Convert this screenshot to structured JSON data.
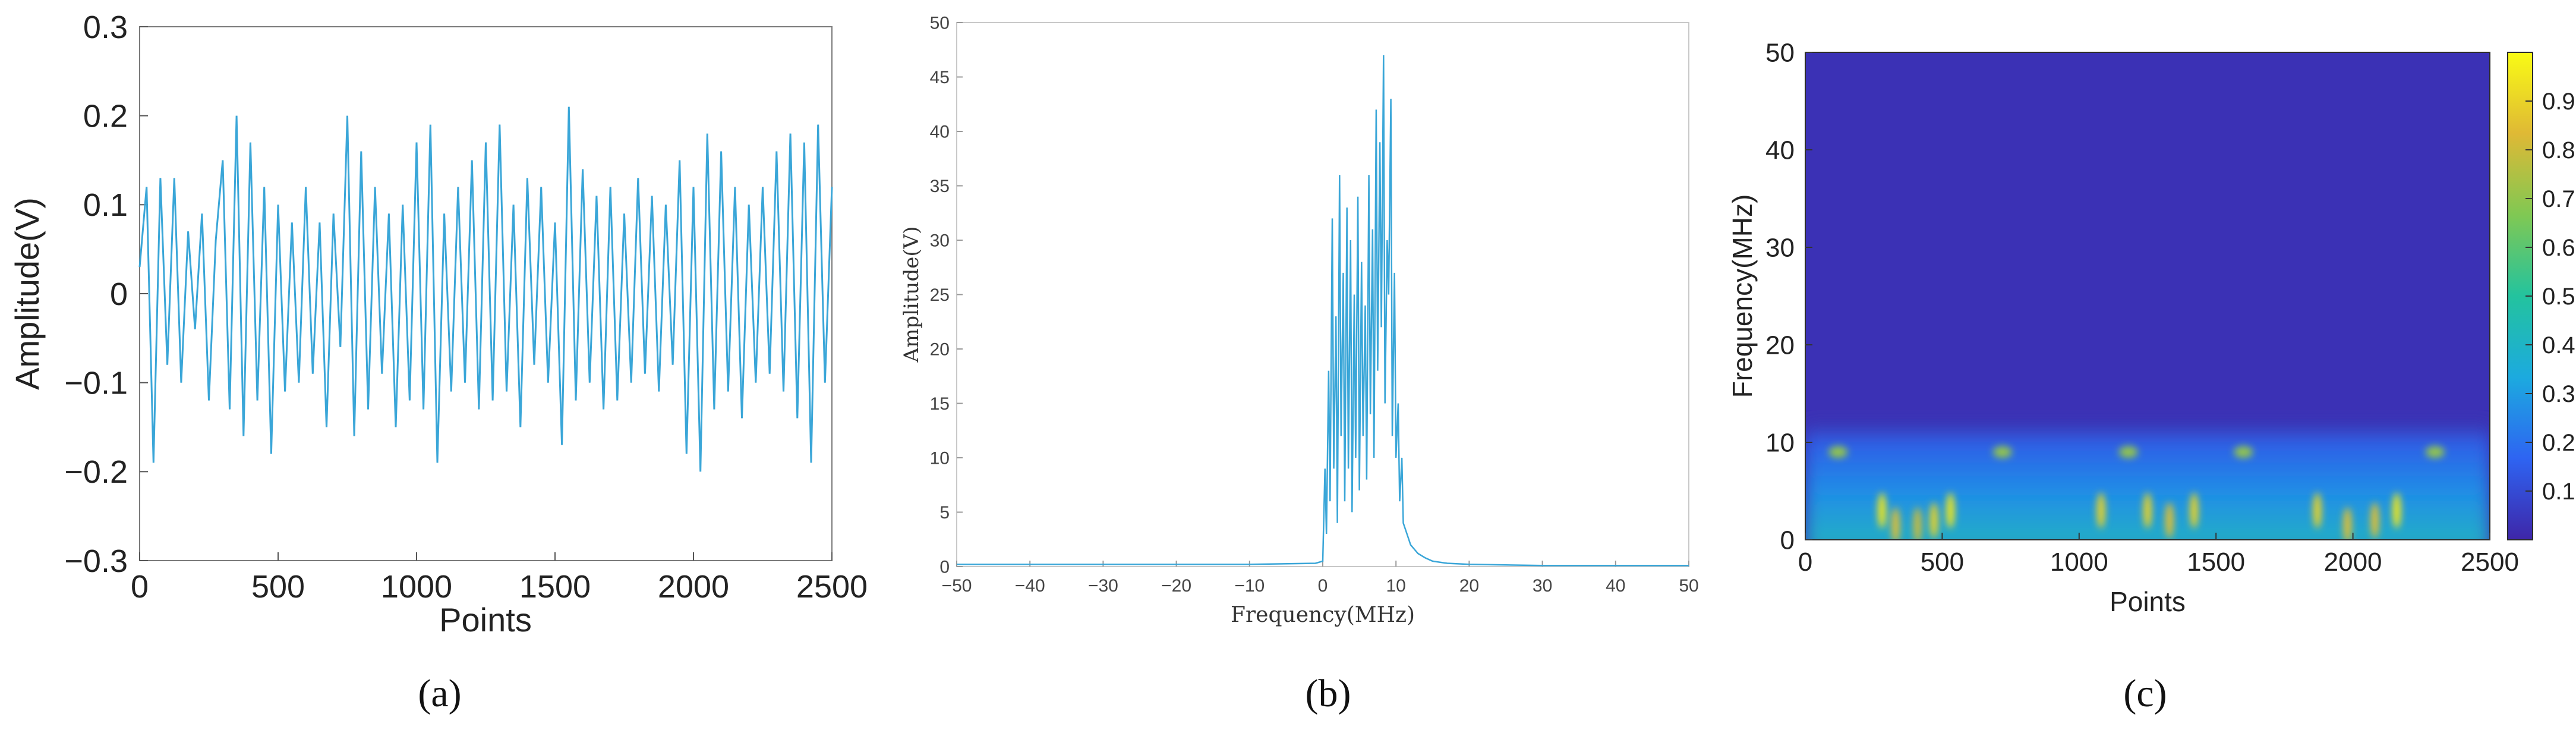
{
  "chart_data": [
    {
      "type": "line",
      "panel_label": "(a)",
      "xlabel": "Points",
      "ylabel": "Amplitude(V)",
      "xlim": [
        0,
        2500
      ],
      "ylim": [
        -0.3,
        0.3
      ],
      "xticks": [
        0,
        500,
        1000,
        1500,
        2000,
        2500
      ],
      "xtick_labels": [
        "0",
        "500",
        "1000",
        "1500",
        "2000",
        "2500"
      ],
      "yticks": [
        -0.3,
        -0.2,
        -0.1,
        0,
        0.1,
        0.2,
        0.3
      ],
      "ytick_labels": [
        "−0.3",
        "−0.2",
        "−0.1",
        "0",
        "0.1",
        "0.2",
        "0.3"
      ],
      "grid": false,
      "color": "#3aa6d8",
      "series": [
        {
          "x": [
            0,
            25,
            50,
            75,
            100,
            125,
            150,
            175,
            200,
            225,
            250,
            275,
            300,
            325,
            350,
            375,
            400,
            425,
            450,
            475,
            500,
            525,
            550,
            575,
            600,
            625,
            650,
            675,
            700,
            725,
            750,
            775,
            800,
            825,
            850,
            875,
            900,
            925,
            950,
            975,
            1000,
            1025,
            1050,
            1075,
            1100,
            1125,
            1150,
            1175,
            1200,
            1225,
            1250,
            1275,
            1300,
            1325,
            1350,
            1375,
            1400,
            1425,
            1450,
            1475,
            1500,
            1525,
            1550,
            1575,
            1600,
            1625,
            1650,
            1675,
            1700,
            1725,
            1750,
            1775,
            1800,
            1825,
            1850,
            1875,
            1900,
            1925,
            1950,
            1975,
            2000,
            2025,
            2050,
            2075,
            2100,
            2125,
            2150,
            2175,
            2200,
            2225,
            2250,
            2275,
            2300,
            2325,
            2350,
            2375,
            2400,
            2425,
            2450,
            2475,
            2500
          ],
          "y": [
            0.03,
            0.12,
            -0.19,
            0.13,
            -0.08,
            0.13,
            -0.1,
            0.07,
            -0.04,
            0.09,
            -0.12,
            0.06,
            0.15,
            -0.13,
            0.2,
            -0.16,
            0.17,
            -0.12,
            0.12,
            -0.18,
            0.1,
            -0.11,
            0.08,
            -0.1,
            0.12,
            -0.09,
            0.08,
            -0.15,
            0.09,
            -0.06,
            0.2,
            -0.16,
            0.16,
            -0.13,
            0.12,
            -0.09,
            0.09,
            -0.15,
            0.1,
            -0.12,
            0.17,
            -0.13,
            0.19,
            -0.19,
            0.09,
            -0.11,
            0.12,
            -0.1,
            0.15,
            -0.13,
            0.17,
            -0.12,
            0.19,
            -0.11,
            0.1,
            -0.15,
            0.13,
            -0.08,
            0.12,
            -0.1,
            0.08,
            -0.17,
            0.21,
            -0.12,
            0.14,
            -0.1,
            0.11,
            -0.13,
            0.12,
            -0.12,
            0.09,
            -0.1,
            0.13,
            -0.09,
            0.11,
            -0.11,
            0.1,
            -0.08,
            0.15,
            -0.18,
            0.12,
            -0.2,
            0.18,
            -0.13,
            0.16,
            -0.11,
            0.12,
            -0.14,
            0.1,
            -0.1,
            0.12,
            -0.09,
            0.16,
            -0.11,
            0.18,
            -0.14,
            0.17,
            -0.19,
            0.19,
            -0.1,
            0.12
          ]
        }
      ]
    },
    {
      "type": "line",
      "panel_label": "(b)",
      "xlabel": "Frequency(MHz)",
      "ylabel": "Amplitude(V)",
      "xlim": [
        -50,
        50
      ],
      "ylim": [
        0,
        50
      ],
      "xticks": [
        -50,
        -40,
        -30,
        -20,
        -10,
        0,
        10,
        20,
        30,
        40,
        50
      ],
      "xtick_labels": [
        "−50",
        "−40",
        "−30",
        "−20",
        "−10",
        "0",
        "10",
        "20",
        "30",
        "40",
        "50"
      ],
      "yticks": [
        0,
        5,
        10,
        15,
        20,
        25,
        30,
        35,
        40,
        45,
        50
      ],
      "ytick_labels": [
        "0",
        "5",
        "10",
        "15",
        "20",
        "25",
        "30",
        "35",
        "40",
        "45",
        "50"
      ],
      "grid": false,
      "color": "#3aa6d8",
      "series": [
        {
          "x": [
            -50,
            -10,
            -1,
            0,
            0.3,
            0.5,
            0.8,
            1,
            1.3,
            1.5,
            1.8,
            2,
            2.3,
            2.5,
            2.8,
            3,
            3.3,
            3.5,
            3.8,
            4,
            4.3,
            4.5,
            4.8,
            5,
            5.3,
            5.5,
            5.8,
            6,
            6.3,
            6.5,
            6.8,
            7,
            7.3,
            7.5,
            7.8,
            8,
            8.3,
            8.5,
            8.8,
            9,
            9.3,
            9.5,
            9.8,
            10,
            10.3,
            10.5,
            10.8,
            11,
            11.5,
            12,
            13,
            14,
            15,
            17,
            20,
            25,
            30,
            40,
            50
          ],
          "y": [
            0.2,
            0.2,
            0.3,
            0.5,
            9,
            3,
            18,
            6,
            32,
            9,
            23,
            4,
            36,
            12,
            27,
            6,
            33,
            9,
            30,
            5,
            25,
            10,
            34,
            7,
            28,
            12,
            24,
            8,
            36,
            14,
            31,
            10,
            42,
            18,
            39,
            22,
            47,
            15,
            30,
            25,
            43,
            12,
            27,
            10,
            15,
            6,
            10,
            4,
            3,
            2,
            1.2,
            0.8,
            0.5,
            0.3,
            0.2,
            0.15,
            0.1,
            0.1,
            0.1
          ]
        }
      ]
    },
    {
      "type": "heatmap",
      "panel_label": "(c)",
      "xlabel": "Points",
      "ylabel": "Frequency(MHz)",
      "xlim": [
        0,
        2500
      ],
      "ylim": [
        0,
        50
      ],
      "xticks": [
        0,
        500,
        1000,
        1500,
        2000,
        2500
      ],
      "xtick_labels": [
        "0",
        "500",
        "1000",
        "1500",
        "2000",
        "2500"
      ],
      "yticks": [
        0,
        10,
        20,
        30,
        40,
        50
      ],
      "ytick_labels": [
        "0",
        "10",
        "20",
        "30",
        "40",
        "50"
      ],
      "colorbar": {
        "min": 0,
        "max": 1,
        "ticks": [
          0.1,
          0.2,
          0.3,
          0.4,
          0.5,
          0.6,
          0.7,
          0.8,
          0.9
        ],
        "tick_labels": [
          "0.1",
          "0.2",
          "0.3",
          "0.4",
          "0.5",
          "0.6",
          "0.7",
          "0.8",
          "0.9"
        ],
        "colormap": "parula",
        "colors": [
          "#3e26a8",
          "#2e64f2",
          "#1caadf",
          "#23c39e",
          "#80c853",
          "#dfb935",
          "#f9fb15"
        ]
      },
      "background_value": 0.03,
      "energy_band_mhz": [
        0,
        12
      ],
      "hotspots": [
        {
          "x": 120,
          "y": 9,
          "value": 0.7
        },
        {
          "x": 280,
          "y": 3,
          "value": 0.95
        },
        {
          "x": 330,
          "y": 1.5,
          "value": 0.85
        },
        {
          "x": 410,
          "y": 1.5,
          "value": 0.8
        },
        {
          "x": 470,
          "y": 2,
          "value": 0.9
        },
        {
          "x": 530,
          "y": 3,
          "value": 0.95
        },
        {
          "x": 720,
          "y": 9,
          "value": 0.7
        },
        {
          "x": 1080,
          "y": 3,
          "value": 0.9
        },
        {
          "x": 1180,
          "y": 9,
          "value": 0.7
        },
        {
          "x": 1250,
          "y": 3,
          "value": 0.9
        },
        {
          "x": 1330,
          "y": 2,
          "value": 0.85
        },
        {
          "x": 1420,
          "y": 3,
          "value": 0.9
        },
        {
          "x": 1600,
          "y": 9,
          "value": 0.7
        },
        {
          "x": 1870,
          "y": 3,
          "value": 0.9
        },
        {
          "x": 1980,
          "y": 1.5,
          "value": 0.85
        },
        {
          "x": 2080,
          "y": 2,
          "value": 0.85
        },
        {
          "x": 2160,
          "y": 3,
          "value": 0.95
        },
        {
          "x": 2300,
          "y": 9,
          "value": 0.7
        }
      ]
    }
  ]
}
